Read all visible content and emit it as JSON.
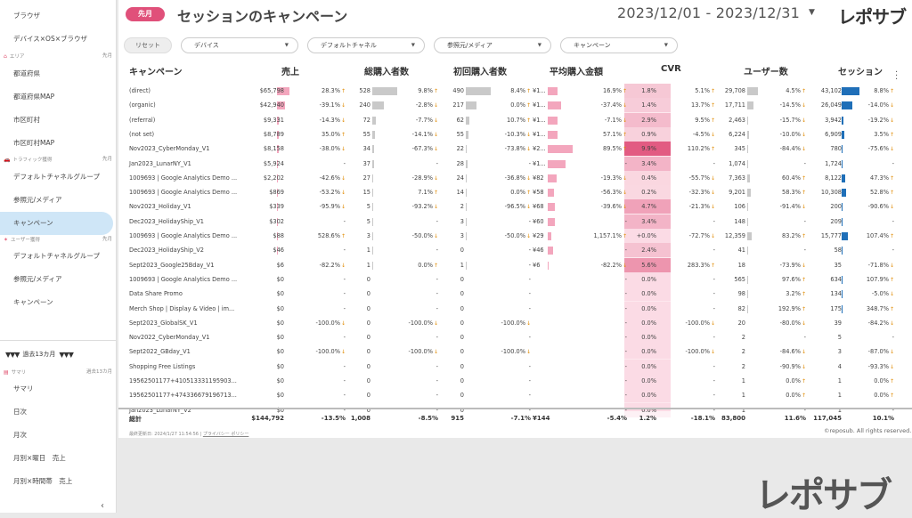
{
  "sidebar": {
    "items": [
      {
        "label": "ブラウザ"
      },
      {
        "label": "デバイス×OS×ブラウザ"
      },
      {
        "label": "都道府県"
      },
      {
        "label": "都道府県MAP"
      },
      {
        "label": "市区町村"
      },
      {
        "label": "市区町村MAP"
      },
      {
        "label": "デフォルトチャネルグループ"
      },
      {
        "label": "参照元/メディア"
      },
      {
        "label": "キャンペーン"
      },
      {
        "label": "デフォルトチャネルグループ"
      },
      {
        "label": "参照元/メディア"
      },
      {
        "label": "キャンペーン"
      },
      {
        "label": "サマリ"
      },
      {
        "label": "日次"
      },
      {
        "label": "月次"
      },
      {
        "label": "月別×曜日　売上"
      },
      {
        "label": "月別×時間帯　売上"
      }
    ],
    "sections": {
      "area": {
        "label": "エリア",
        "period": "先月"
      },
      "traffic": {
        "label": "トラフィック獲得",
        "period": "先月"
      },
      "user": {
        "label": "ユーザー獲得",
        "period": "先月"
      },
      "summary": {
        "label": "サマリ",
        "period": "過去13カ月"
      }
    },
    "period_toggle": {
      "label": "過去13カ月",
      "tri": "▼▼▼"
    },
    "collapse": "‹"
  },
  "header": {
    "badge": "先月",
    "title": "セッションのキャンペーン",
    "date_range": "2023/12/01 - 2023/12/31",
    "caret": "▼",
    "logo": "レポサブ"
  },
  "filters": {
    "reset": "リセット",
    "items": [
      "デバイス",
      "デフォルトチャネル",
      "参照元/メディア",
      "キャンペーン"
    ],
    "caret": "▼"
  },
  "table": {
    "columns": {
      "campaign": "キャンペーン",
      "revenue": "売上",
      "purchasers": "総購入者数",
      "first": "初回購入者数",
      "avg": "平均購入金額",
      "cvr": "CVR",
      "users": "ユーザー数",
      "sessions": "セッション"
    },
    "rows": [
      {
        "name": "(direct)",
        "rev": "$65,798",
        "rev_c": "28.3%",
        "pur": "528",
        "pur_c": "9.8%",
        "fir": "490",
        "fir_c": "8.4%",
        "avg": "¥1...",
        "avg_c": "16.9%",
        "cvr": "1.8%",
        "cvr_c": "5.1%",
        "usr": "29,708",
        "usr_c": "4.5%",
        "ses": "43,102",
        "ses_c": "8.8%",
        "bars": {
          "rev": 1,
          "pur": 1,
          "fir": 1,
          "avg": 0.4,
          "usr": 0.6,
          "ses": 1
        },
        "cvr_heat": 0.15
      },
      {
        "name": "(organic)",
        "rev": "$42,940",
        "rev_c": "-39.1%",
        "pur": "240",
        "pur_c": "-2.8%",
        "fir": "217",
        "fir_c": "0.0%",
        "avg": "¥1...",
        "avg_c": "-37.4%",
        "cvr": "1.4%",
        "cvr_c": "13.7%",
        "usr": "17,711",
        "usr_c": "-14.5%",
        "ses": "26,049",
        "ses_c": "-14.0%",
        "bars": {
          "rev": 0.65,
          "pur": 0.45,
          "fir": 0.44,
          "avg": 0.55,
          "usr": 0.35,
          "ses": 0.6
        },
        "cvr_heat": 0.12
      },
      {
        "name": "(referral)",
        "rev": "$9,331",
        "rev_c": "-14.3%",
        "pur": "72",
        "pur_c": "-7.7%",
        "fir": "62",
        "fir_c": "10.7%",
        "avg": "¥1...",
        "avg_c": "-7.1%",
        "cvr": "2.9%",
        "cvr_c": "9.5%",
        "usr": "2,463",
        "usr_c": "-15.7%",
        "ses": "3,942",
        "ses_c": "-19.2%",
        "bars": {
          "rev": 0.14,
          "pur": 0.14,
          "fir": 0.13,
          "avg": 0.4,
          "usr": 0.05,
          "ses": 0.09
        },
        "cvr_heat": 0.25
      },
      {
        "name": "(not set)",
        "rev": "$8,789",
        "rev_c": "35.0%",
        "pur": "55",
        "pur_c": "-14.1%",
        "fir": "55",
        "fir_c": "-10.3%",
        "avg": "¥1...",
        "avg_c": "57.1%",
        "cvr": "0.9%",
        "cvr_c": "-4.5%",
        "usr": "6,224",
        "usr_c": "-10.0%",
        "ses": "6,909",
        "ses_c": "3.5%",
        "bars": {
          "rev": 0.13,
          "pur": 0.1,
          "fir": 0.11,
          "avg": 0.4,
          "usr": 0.12,
          "ses": 0.16
        },
        "cvr_heat": 0.08
      },
      {
        "name": "Nov2023_CyberMonday_V1",
        "rev": "$8,158",
        "rev_c": "-38.0%",
        "pur": "34",
        "pur_c": "-67.3%",
        "fir": "22",
        "fir_c": "-73.8%",
        "avg": "¥2...",
        "avg_c": "89.5%",
        "cvr": "9.9%",
        "cvr_c": "110.2%",
        "usr": "345",
        "usr_c": "-84.4%",
        "ses": "780",
        "ses_c": "-75.6%",
        "bars": {
          "rev": 0.12,
          "pur": 0.06,
          "fir": 0.04,
          "avg": 1,
          "usr": 0.01,
          "ses": 0.02
        },
        "cvr_heat": 1
      },
      {
        "name": "Jan2023_LunarNY_V1",
        "rev": "$5,924",
        "rev_c": "-",
        "pur": "37",
        "pur_c": "-",
        "fir": "28",
        "fir_c": "-",
        "avg": "¥1...",
        "avg_c": "-",
        "cvr": "3.4%",
        "cvr_c": "-",
        "usr": "1,074",
        "usr_c": "-",
        "ses": "1,724",
        "ses_c": "-",
        "bars": {
          "rev": 0.09,
          "pur": 0.07,
          "fir": 0.06,
          "avg": 0.7,
          "usr": 0.02,
          "ses": 0.04
        },
        "cvr_heat": 0.3
      },
      {
        "name": "1009693 | Google Analytics Demo ...",
        "rev": "$2,202",
        "rev_c": "-42.6%",
        "pur": "27",
        "pur_c": "-28.9%",
        "fir": "24",
        "fir_c": "-36.8%",
        "avg": "¥82",
        "avg_c": "-19.3%",
        "cvr": "0.4%",
        "cvr_c": "-55.7%",
        "usr": "7,363",
        "usr_c": "60.4%",
        "ses": "8,122",
        "ses_c": "47.3%",
        "bars": {
          "rev": 0.03,
          "pur": 0.05,
          "fir": 0.05,
          "avg": 0.35,
          "usr": 0.15,
          "ses": 0.19
        },
        "cvr_heat": 0.04
      },
      {
        "name": "1009693 | Google Analytics Demo ...",
        "rev": "$869",
        "rev_c": "-53.2%",
        "pur": "15",
        "pur_c": "7.1%",
        "fir": "14",
        "fir_c": "0.0%",
        "avg": "¥58",
        "avg_c": "-56.3%",
        "cvr": "0.2%",
        "cvr_c": "-32.3%",
        "usr": "9,201",
        "usr_c": "58.3%",
        "ses": "10,308",
        "ses_c": "52.8%",
        "bars": {
          "rev": 0.01,
          "pur": 0.03,
          "fir": 0.03,
          "avg": 0.25,
          "usr": 0.18,
          "ses": 0.24
        },
        "cvr_heat": 0.02
      },
      {
        "name": "Nov2023_Holiday_V1",
        "rev": "$339",
        "rev_c": "-95.9%",
        "pur": "5",
        "pur_c": "-93.2%",
        "fir": "2",
        "fir_c": "-96.5%",
        "avg": "¥68",
        "avg_c": "-39.6%",
        "cvr": "4.7%",
        "cvr_c": "-21.3%",
        "usr": "106",
        "usr_c": "-91.4%",
        "ses": "200",
        "ses_c": "-90.6%",
        "bars": {
          "rev": 0.005,
          "pur": 0.01,
          "fir": 0.004,
          "avg": 0.3,
          "usr": 0.003,
          "ses": 0.005
        },
        "cvr_heat": 0.45
      },
      {
        "name": "Dec2023_HolidayShip_V1",
        "rev": "$302",
        "rev_c": "-",
        "pur": "5",
        "pur_c": "-",
        "fir": "3",
        "fir_c": "-",
        "avg": "¥60",
        "avg_c": "-",
        "cvr": "3.4%",
        "cvr_c": "-",
        "usr": "148",
        "usr_c": "-",
        "ses": "209",
        "ses_c": "-",
        "bars": {
          "rev": 0.005,
          "pur": 0.01,
          "fir": 0.006,
          "avg": 0.27,
          "usr": 0.004,
          "ses": 0.005
        },
        "cvr_heat": 0.3
      },
      {
        "name": "1009693 | Google Analytics Demo ...",
        "rev": "$88",
        "rev_c": "528.6%",
        "pur": "3",
        "pur_c": "-50.0%",
        "fir": "3",
        "fir_c": "-50.0%",
        "avg": "¥29",
        "avg_c": "1,157.1%",
        "cvr": "+0.0%",
        "cvr_c": "-72.7%",
        "usr": "12,359",
        "usr_c": "83.2%",
        "ses": "15,777",
        "ses_c": "107.4%",
        "bars": {
          "rev": 0.002,
          "pur": 0.006,
          "fir": 0.006,
          "avg": 0.13,
          "usr": 0.25,
          "ses": 0.37
        },
        "cvr_heat": 0
      },
      {
        "name": "Dec2023_HolidayShip_V2",
        "rev": "$46",
        "rev_c": "-",
        "pur": "1",
        "pur_c": "-",
        "fir": "0",
        "fir_c": "-",
        "avg": "¥46",
        "avg_c": "-",
        "cvr": "2.4%",
        "cvr_c": "-",
        "usr": "41",
        "usr_c": "-",
        "ses": "58",
        "ses_c": "-",
        "bars": {
          "rev": 0.001,
          "pur": 0.002,
          "fir": 0,
          "avg": 0.2,
          "usr": 0.001,
          "ses": 0.001
        },
        "cvr_heat": 0.2
      },
      {
        "name": "Sept2023_Google25Bday_V1",
        "rev": "$6",
        "rev_c": "-82.2%",
        "pur": "1",
        "pur_c": "0.0%",
        "fir": "1",
        "fir_c": "-",
        "avg": "¥6",
        "avg_c": "-82.2%",
        "cvr": "5.6%",
        "cvr_c": "283.3%",
        "usr": "18",
        "usr_c": "-73.9%",
        "ses": "35",
        "ses_c": "-71.8%",
        "bars": {
          "rev": 0,
          "pur": 0.002,
          "fir": 0.002,
          "avg": 0.03,
          "usr": 0,
          "ses": 0
        },
        "cvr_heat": 0.55
      },
      {
        "name": "1009693 | Google Analytics Demo ...",
        "rev": "$0",
        "rev_c": "-",
        "pur": "0",
        "pur_c": "-",
        "fir": "0",
        "fir_c": "-",
        "avg": "",
        "avg_c": "-",
        "cvr": "0.0%",
        "cvr_c": "-",
        "usr": "565",
        "usr_c": "97.6%",
        "ses": "634",
        "ses_c": "107.9%",
        "bars": {
          "rev": 0,
          "pur": 0,
          "fir": 0,
          "avg": 0,
          "usr": 0.01,
          "ses": 0.015
        },
        "cvr_heat": 0
      },
      {
        "name": "Data Share Promo",
        "rev": "$0",
        "rev_c": "-",
        "pur": "0",
        "pur_c": "-",
        "fir": "0",
        "fir_c": "-",
        "avg": "",
        "avg_c": "-",
        "cvr": "0.0%",
        "cvr_c": "-",
        "usr": "98",
        "usr_c": "3.2%",
        "ses": "134",
        "ses_c": "-5.0%",
        "bars": {
          "rev": 0,
          "pur": 0,
          "fir": 0,
          "avg": 0,
          "usr": 0.002,
          "ses": 0.003
        },
        "cvr_heat": 0
      },
      {
        "name": "Merch Shop | Display & Video | im...",
        "rev": "$0",
        "rev_c": "-",
        "pur": "0",
        "pur_c": "-",
        "fir": "0",
        "fir_c": "-",
        "avg": "",
        "avg_c": "-",
        "cvr": "0.0%",
        "cvr_c": "-",
        "usr": "82",
        "usr_c": "192.9%",
        "ses": "175",
        "ses_c": "348.7%",
        "bars": {
          "rev": 0,
          "pur": 0,
          "fir": 0,
          "avg": 0,
          "usr": 0.002,
          "ses": 0.004
        },
        "cvr_heat": 0
      },
      {
        "name": "Sept2023_GlobalSK_V1",
        "rev": "$0",
        "rev_c": "-100.0%",
        "pur": "0",
        "pur_c": "-100.0%",
        "fir": "0",
        "fir_c": "-100.0%",
        "avg": "",
        "avg_c": "-",
        "cvr": "0.0%",
        "cvr_c": "-100.0%",
        "usr": "20",
        "usr_c": "-80.0%",
        "ses": "39",
        "ses_c": "-84.2%",
        "bars": {
          "rev": 0,
          "pur": 0,
          "fir": 0,
          "avg": 0,
          "usr": 0,
          "ses": 0
        },
        "cvr_heat": 0
      },
      {
        "name": "Nov2022_CyberMonday_V1",
        "rev": "$0",
        "rev_c": "-",
        "pur": "0",
        "pur_c": "-",
        "fir": "0",
        "fir_c": "-",
        "avg": "",
        "avg_c": "-",
        "cvr": "0.0%",
        "cvr_c": "-",
        "usr": "2",
        "usr_c": "-",
        "ses": "5",
        "ses_c": "-",
        "bars": {
          "rev": 0,
          "pur": 0,
          "fir": 0,
          "avg": 0,
          "usr": 0,
          "ses": 0
        },
        "cvr_heat": 0
      },
      {
        "name": "Sept2022_GBday_V1",
        "rev": "$0",
        "rev_c": "-100.0%",
        "pur": "0",
        "pur_c": "-100.0%",
        "fir": "0",
        "fir_c": "-100.0%",
        "avg": "",
        "avg_c": "-",
        "cvr": "0.0%",
        "cvr_c": "-100.0%",
        "usr": "2",
        "usr_c": "-84.6%",
        "ses": "3",
        "ses_c": "-87.0%",
        "bars": {
          "rev": 0,
          "pur": 0,
          "fir": 0,
          "avg": 0,
          "usr": 0,
          "ses": 0
        },
        "cvr_heat": 0
      },
      {
        "name": "Shopping Free Listings",
        "rev": "$0",
        "rev_c": "-",
        "pur": "0",
        "pur_c": "-",
        "fir": "0",
        "fir_c": "-",
        "avg": "",
        "avg_c": "-",
        "cvr": "0.0%",
        "cvr_c": "-",
        "usr": "2",
        "usr_c": "-90.9%",
        "ses": "4",
        "ses_c": "-93.3%",
        "bars": {
          "rev": 0,
          "pur": 0,
          "fir": 0,
          "avg": 0,
          "usr": 0,
          "ses": 0
        },
        "cvr_heat": 0
      },
      {
        "name": "19562501177+410513331195903...",
        "rev": "$0",
        "rev_c": "-",
        "pur": "0",
        "pur_c": "-",
        "fir": "0",
        "fir_c": "-",
        "avg": "",
        "avg_c": "-",
        "cvr": "0.0%",
        "cvr_c": "-",
        "usr": "1",
        "usr_c": "0.0%",
        "ses": "1",
        "ses_c": "0.0%",
        "bars": {
          "rev": 0,
          "pur": 0,
          "fir": 0,
          "avg": 0,
          "usr": 0,
          "ses": 0
        },
        "cvr_heat": 0
      },
      {
        "name": "19562501177+474336679196713...",
        "rev": "$0",
        "rev_c": "-",
        "pur": "0",
        "pur_c": "-",
        "fir": "0",
        "fir_c": "-",
        "avg": "",
        "avg_c": "-",
        "cvr": "0.0%",
        "cvr_c": "-",
        "usr": "1",
        "usr_c": "0.0%",
        "ses": "1",
        "ses_c": "0.0%",
        "bars": {
          "rev": 0,
          "pur": 0,
          "fir": 0,
          "avg": 0,
          "usr": 0,
          "ses": 0
        },
        "cvr_heat": 0
      },
      {
        "name": "Jan2023_LunarNY_V2",
        "rev": "$0",
        "rev_c": "-",
        "pur": "0",
        "pur_c": "-",
        "fir": "0",
        "fir_c": "-",
        "avg": "",
        "avg_c": "-",
        "cvr": "0.0%",
        "cvr_c": "-",
        "usr": "1",
        "usr_c": "-",
        "ses": "1",
        "ses_c": "-",
        "bars": {
          "rev": 0,
          "pur": 0,
          "fir": 0,
          "avg": 0,
          "usr": 0,
          "ses": 0
        },
        "cvr_heat": 0
      }
    ],
    "total": {
      "label": "総計",
      "rev": "$144,792",
      "rev_c": "-13.5%",
      "pur": "1,008",
      "pur_c": "-8.5%",
      "fir": "915",
      "fir_c": "-7.1%",
      "avg": "¥144",
      "avg_c": "-5.4%",
      "cvr": "1.2%",
      "cvr_c": "-18.1%",
      "usr": "83,800",
      "usr_c": "11.6%",
      "ses": "117,045",
      "ses_c": "10.1%"
    }
  },
  "footer": {
    "updated": "最終更新日: 2024/1/27 11:54:56",
    "privacy": "プライバシー ポリシー",
    "copyright": "©reposub. All rights reserved."
  },
  "bottom_logo": "レポサブ",
  "colors": {
    "accent": "#e0507a",
    "bar_pink": "#f3a6bd",
    "bar_gray": "#c9c9c9",
    "bar_blue": "#1f6fb8",
    "active_bg": "#cfe6f7"
  }
}
